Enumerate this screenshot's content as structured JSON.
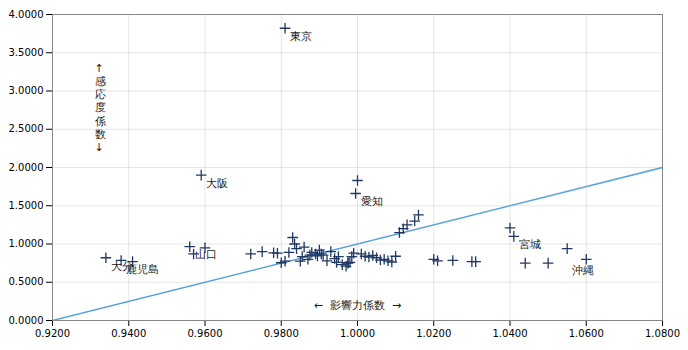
{
  "chart_data": {
    "type": "scatter",
    "xlabel": "←  影響力係数  →",
    "ylabel": "↑感応度係数↓",
    "xlim": [
      0.92,
      1.08
    ],
    "ylim": [
      0.0,
      4.0
    ],
    "xticks": [
      {
        "value": 0.92,
        "label": "0.9200"
      },
      {
        "value": 0.94,
        "label": "0.9400"
      },
      {
        "value": 0.96,
        "label": "0.9600"
      },
      {
        "value": 0.98,
        "label": "0.9800"
      },
      {
        "value": 1.0,
        "label": "1.0000"
      },
      {
        "value": 1.02,
        "label": "1.0200"
      },
      {
        "value": 1.04,
        "label": "1.0400"
      },
      {
        "value": 1.06,
        "label": "1.0600"
      },
      {
        "value": 1.08,
        "label": "1.0800"
      }
    ],
    "yticks": [
      {
        "value": 0.0,
        "label": "0.0000"
      },
      {
        "value": 0.5,
        "label": "0.5000"
      },
      {
        "value": 1.0,
        "label": "1.0000"
      },
      {
        "value": 1.5,
        "label": "1.5000"
      },
      {
        "value": 2.0,
        "label": "2.0000"
      },
      {
        "value": 2.5,
        "label": "2.5000"
      },
      {
        "value": 3.0,
        "label": "3.0000"
      },
      {
        "value": 3.5,
        "label": "3.5000"
      },
      {
        "value": 4.0,
        "label": "4.0000"
      }
    ],
    "grid": true,
    "series": [
      {
        "type": "line",
        "color": "#5ba3d9",
        "x": [
          0.92,
          1.08
        ],
        "values": [
          0.0,
          2.0
        ]
      },
      {
        "type": "scatter",
        "color": "#1f3864",
        "marker": "+",
        "x": [
          0.934,
          0.938,
          0.941,
          0.956,
          0.96,
          0.957,
          0.959,
          0.972,
          0.975,
          0.978,
          0.979,
          0.98,
          0.981,
          0.982,
          0.983,
          0.9835,
          0.984,
          0.985,
          0.9855,
          0.986,
          0.987,
          0.9875,
          0.988,
          0.989,
          0.9895,
          0.99,
          0.9905,
          0.991,
          0.992,
          0.993,
          0.994,
          0.9945,
          0.995,
          0.996,
          0.997,
          0.9975,
          0.998,
          0.9985,
          0.999,
          0.9995,
          1.0,
          1.001,
          1.002,
          1.003,
          1.004,
          1.005,
          1.006,
          1.007,
          1.008,
          1.009,
          1.01,
          1.011,
          1.012,
          1.013,
          1.015,
          1.016,
          1.02,
          1.021,
          1.025,
          1.03,
          1.031,
          1.04,
          1.041,
          1.044,
          1.05,
          1.055,
          1.06,
          0.981,
          0.9975
        ],
        "values": [
          0.82,
          0.785,
          0.77,
          0.965,
          0.95,
          0.87,
          1.9,
          0.87,
          0.9,
          0.885,
          0.88,
          0.755,
          0.775,
          0.89,
          1.085,
          1.0,
          0.94,
          0.775,
          0.835,
          0.96,
          0.8,
          0.855,
          0.89,
          0.87,
          0.845,
          0.92,
          0.87,
          0.855,
          0.78,
          0.9,
          0.81,
          0.76,
          0.835,
          0.73,
          0.71,
          0.75,
          0.76,
          0.835,
          0.88,
          1.66,
          1.83,
          0.87,
          0.84,
          0.83,
          0.85,
          0.82,
          0.79,
          0.8,
          0.78,
          0.765,
          0.84,
          1.15,
          1.2,
          1.25,
          1.3,
          1.38,
          0.8,
          0.78,
          0.785,
          0.77,
          0.77,
          1.21,
          1.1,
          0.75,
          0.75,
          0.94,
          0.8,
          3.82,
          0.755
        ]
      }
    ],
    "annotations": [
      {
        "text": "東京",
        "x": 0.981,
        "y": 3.82
      },
      {
        "text": "大阪",
        "x": 0.959,
        "y": 1.9
      },
      {
        "text": "山口",
        "x": 0.956,
        "y": 0.965
      },
      {
        "text": "愛知",
        "x": 0.9995,
        "y": 1.66
      },
      {
        "text": "大分",
        "x": 0.934,
        "y": 0.82
      },
      {
        "text": "鹿児島",
        "x": 0.938,
        "y": 0.77
      },
      {
        "text": "宮城",
        "x": 1.041,
        "y": 1.1
      },
      {
        "text": "沖縄",
        "x": 1.055,
        "y": 0.76
      }
    ]
  }
}
